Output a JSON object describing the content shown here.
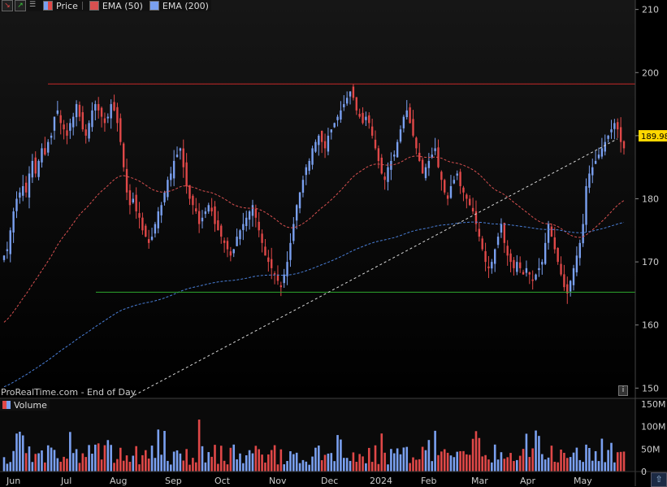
{
  "legend": {
    "price_label": "Price",
    "ema50_label": "EMA (50)",
    "ema200_label": "EMA (200)",
    "icons": [
      "arrow-down-icon",
      "arrow-up-icon",
      "lines-icon"
    ]
  },
  "watermark": "ProRealTime.com - End of Day",
  "volume_label": "Volume",
  "current_price": "189.98",
  "colors": {
    "up": "#7aa0f0",
    "down": "#e04848",
    "ema50": "#d85050",
    "ema200": "#4a7fd8",
    "resistance": "#c82828",
    "support": "#2ea82e",
    "trendline": "#d8d8d8",
    "price_tag": "#ffd700"
  },
  "chart_data": {
    "type": "candlestick",
    "x_labels": [
      "Jun",
      "Jul",
      "Aug",
      "Sep",
      "Oct",
      "Nov",
      "Dec",
      "2024",
      "Feb",
      "Mar",
      "Apr",
      "May"
    ],
    "y_ticks": [
      150,
      160,
      170,
      180,
      190,
      200,
      210
    ],
    "ylim": [
      148.5,
      211.5
    ],
    "volume_ticks": [
      "0",
      "50M",
      "100M",
      "150M"
    ],
    "volume_ylim": [
      0,
      150
    ],
    "resistance_level": 198.2,
    "support_level": 165.2,
    "last_price": 189.98,
    "closes": [
      171,
      172,
      175,
      178,
      180,
      181,
      182,
      181,
      184,
      186,
      184,
      186,
      188,
      187,
      189,
      190,
      193,
      194,
      192,
      191,
      190,
      192,
      193,
      195,
      193,
      191,
      190,
      192,
      194,
      195,
      194,
      193,
      192,
      193,
      195,
      194,
      192,
      189,
      185,
      181,
      179,
      180,
      178,
      177,
      175,
      174,
      173,
      174,
      176,
      178,
      179,
      181,
      183,
      184,
      186,
      187,
      188,
      185,
      182,
      180,
      179,
      178,
      176,
      177,
      178,
      179,
      178,
      176,
      175,
      174,
      173,
      172,
      171,
      172,
      174,
      175,
      176,
      177,
      178,
      179,
      177,
      175,
      173,
      171,
      170,
      169,
      168,
      167,
      166,
      168,
      170,
      173,
      176,
      179,
      181,
      183,
      185,
      186,
      188,
      189,
      190,
      189,
      188,
      190,
      191,
      192,
      193,
      194,
      195,
      196,
      197,
      196,
      194,
      193,
      192,
      193,
      192,
      190,
      188,
      186,
      184,
      183,
      185,
      186,
      187,
      189,
      191,
      193,
      194,
      192,
      190,
      188,
      186,
      184,
      185,
      186,
      187,
      188,
      185,
      183,
      181,
      180,
      182,
      183,
      184,
      182,
      181,
      180,
      179,
      178,
      176,
      174,
      172,
      170,
      169,
      170,
      172,
      174,
      176,
      173,
      171,
      170,
      169,
      170,
      169,
      168,
      169,
      168,
      167,
      168,
      169,
      170,
      173,
      176,
      174,
      172,
      170,
      168,
      166,
      165,
      167,
      169,
      171,
      173,
      176,
      182,
      184,
      185,
      186,
      187,
      188,
      189,
      190,
      191,
      192,
      191,
      189,
      188
    ]
  },
  "y_tick_labels": [
    "210",
    "200",
    "190",
    "180",
    "170",
    "160",
    "150"
  ],
  "x_tick_labels": [
    "Jun",
    "Jul",
    "Aug",
    "Sep",
    "Oct",
    "Nov",
    "Dec",
    "2024",
    "Feb",
    "Mar",
    "Apr",
    "May"
  ]
}
